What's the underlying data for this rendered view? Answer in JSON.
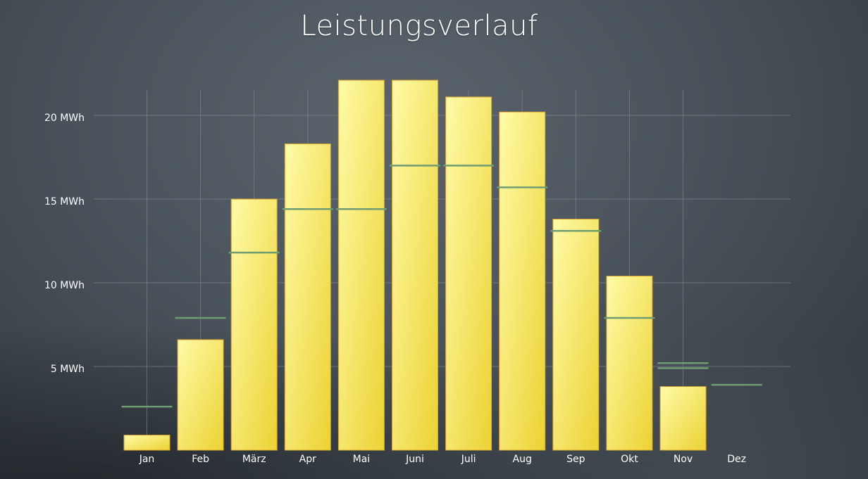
{
  "chart_data": {
    "type": "bar",
    "title": "Leistungsverlauf",
    "xlabel": "",
    "ylabel": "",
    "unit": "MWh",
    "categories": [
      "Jan",
      "Feb",
      "März",
      "Apr",
      "Mai",
      "Juni",
      "Juli",
      "Aug",
      "Sep",
      "Okt",
      "Nov",
      "Dez"
    ],
    "series": [
      {
        "type": "bar",
        "values": [
          0.9,
          6.6,
          15.0,
          18.3,
          22.1,
          22.1,
          21.1,
          20.2,
          13.8,
          10.4,
          3.8,
          0
        ]
      },
      {
        "type": "reference-line",
        "values": [
          2.6,
          7.9,
          11.8,
          14.4,
          14.4,
          17.0,
          17.0,
          15.7,
          13.1,
          7.9,
          5.2,
          3.9
        ],
        "secondary_values": [
          null,
          null,
          null,
          null,
          null,
          null,
          null,
          null,
          null,
          null,
          4.9,
          null
        ]
      }
    ],
    "y_ticks": [
      {
        "value": 5,
        "label": "5 MWh"
      },
      {
        "value": 10,
        "label": "10 MWh"
      },
      {
        "value": 15,
        "label": "15 MWh"
      },
      {
        "value": 20,
        "label": "20 MWh"
      }
    ],
    "ylim": [
      0,
      21.5
    ],
    "grid": true,
    "colors": {
      "bar_light": "#fffba8",
      "bar_dark": "#ecd233",
      "bar_stroke": "#d9a030",
      "reference_line": "#6f9c72",
      "grid": "#8a9299"
    }
  }
}
